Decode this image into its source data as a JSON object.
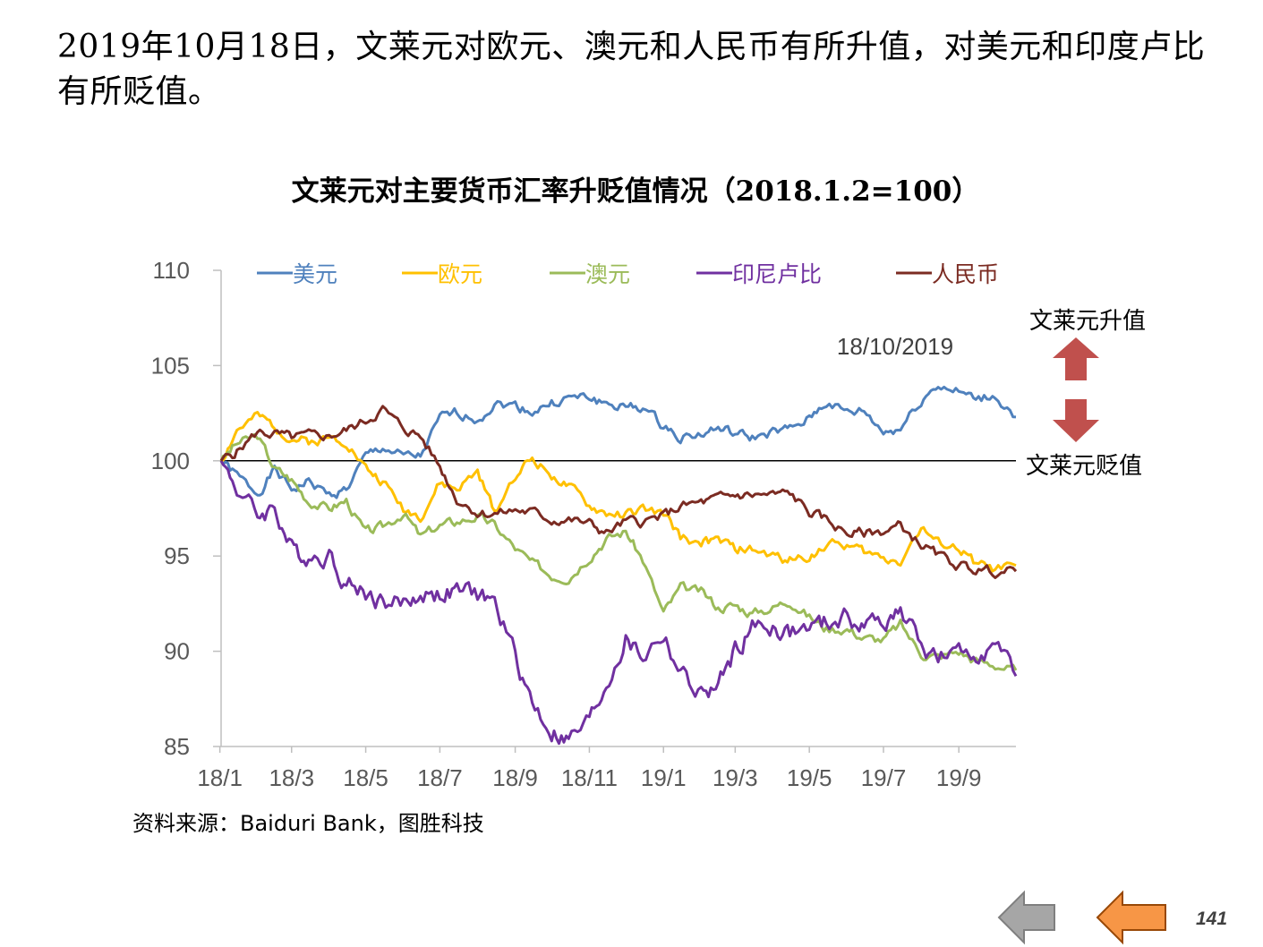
{
  "headline": "2019年10月18日，文莱元对欧元、澳元和人民币有所升值，对美元和印度卢比有所贬值。",
  "source": "资料来源：Baiduri Bank，图胜科技",
  "page_number": "141",
  "colors": {
    "usd": "#4F81BD",
    "eur": "#FFC000",
    "aud": "#9BBB59",
    "idr": "#7030A0",
    "cny": "#7B2B22",
    "arrow_red": "#C0504D",
    "nav_gray": "#A6A6A6",
    "nav_orange": "#F79646"
  },
  "icons": {
    "appreciation": "arrow-up-icon",
    "depreciation": "arrow-down-icon",
    "nav_back": "arrow-left-icon",
    "nav_prev": "arrow-left-icon"
  },
  "chart_data": {
    "type": "line",
    "title": "文莱元对主要货币汇率升贬值情况（2018.1.2=100）",
    "xlabel": "",
    "ylabel": "",
    "ylim": [
      85,
      110
    ],
    "yticks": [
      "85",
      "90",
      "95",
      "100",
      "105",
      "110"
    ],
    "xlim": [
      "2018-01-02",
      "2019-10-18"
    ],
    "xtick_labels": [
      "18/1",
      "18/3",
      "18/5",
      "18/7",
      "18/9",
      "18/11",
      "19/1",
      "19/3",
      "19/5",
      "19/7",
      "19/9"
    ],
    "xtick_dates": [
      "2018-01-01",
      "2018-03-01",
      "2018-05-01",
      "2018-07-01",
      "2018-09-01",
      "2018-11-01",
      "2019-01-01",
      "2019-03-01",
      "2019-05-01",
      "2019-07-01",
      "2019-09-01"
    ],
    "reference_line": 100,
    "legend_position": "top",
    "annotation": "18/10/2019",
    "labels": {
      "up": "文莱元升值",
      "down": "文莱元贬值"
    },
    "series": [
      {
        "name": "美元",
        "key": "usd",
        "points": [
          [
            "2018-01-02",
            100
          ],
          [
            "2018-01-15",
            99.2
          ],
          [
            "2018-02-01",
            98.3
          ],
          [
            "2018-02-15",
            99.5
          ],
          [
            "2018-03-01",
            98.5
          ],
          [
            "2018-03-15",
            98.9
          ],
          [
            "2018-04-01",
            98.2
          ],
          [
            "2018-04-15",
            98.5
          ],
          [
            "2018-05-01",
            100.2
          ],
          [
            "2018-05-15",
            100.7
          ],
          [
            "2018-06-01",
            100.2
          ],
          [
            "2018-06-15",
            100.2
          ],
          [
            "2018-07-01",
            102.2
          ],
          [
            "2018-07-15",
            102.5
          ],
          [
            "2018-08-01",
            102.2
          ],
          [
            "2018-08-15",
            103.0
          ],
          [
            "2018-09-01",
            102.9
          ],
          [
            "2018-09-15",
            102.6
          ],
          [
            "2018-10-01",
            103.0
          ],
          [
            "2018-10-15",
            103.3
          ],
          [
            "2018-11-01",
            103.3
          ],
          [
            "2018-11-15",
            103.0
          ],
          [
            "2018-12-01",
            102.8
          ],
          [
            "2018-12-15",
            102.8
          ],
          [
            "2019-01-01",
            101.8
          ],
          [
            "2019-01-15",
            101.3
          ],
          [
            "2019-02-01",
            101.4
          ],
          [
            "2019-02-15",
            101.7
          ],
          [
            "2019-03-01",
            101.4
          ],
          [
            "2019-03-15",
            101.2
          ],
          [
            "2019-04-01",
            101.5
          ],
          [
            "2019-04-15",
            101.6
          ],
          [
            "2019-05-01",
            102.2
          ],
          [
            "2019-05-15",
            103.1
          ],
          [
            "2019-06-01",
            102.5
          ],
          [
            "2019-06-15",
            102.6
          ],
          [
            "2019-07-01",
            101.5
          ],
          [
            "2019-07-15",
            101.7
          ],
          [
            "2019-08-01",
            103.2
          ],
          [
            "2019-08-15",
            104.0
          ],
          [
            "2019-09-01",
            103.6
          ],
          [
            "2019-09-15",
            103.2
          ],
          [
            "2019-10-01",
            103.4
          ],
          [
            "2019-10-18",
            102.3
          ]
        ]
      },
      {
        "name": "欧元",
        "key": "eur",
        "points": [
          [
            "2018-01-02",
            100
          ],
          [
            "2018-01-15",
            101.6
          ],
          [
            "2018-02-01",
            102.3
          ],
          [
            "2018-02-15",
            101.8
          ],
          [
            "2018-03-01",
            101.2
          ],
          [
            "2018-03-15",
            101.0
          ],
          [
            "2018-04-01",
            101.2
          ],
          [
            "2018-04-15",
            101.1
          ],
          [
            "2018-05-01",
            99.6
          ],
          [
            "2018-05-15",
            98.9
          ],
          [
            "2018-06-01",
            97.5
          ],
          [
            "2018-06-15",
            97.1
          ],
          [
            "2018-07-01",
            98.8
          ],
          [
            "2018-07-15",
            98.5
          ],
          [
            "2018-08-01",
            99.4
          ],
          [
            "2018-08-15",
            97.3
          ],
          [
            "2018-09-01",
            99.3
          ],
          [
            "2018-09-15",
            100.1
          ],
          [
            "2018-10-01",
            99.3
          ],
          [
            "2018-10-15",
            98.6
          ],
          [
            "2018-11-01",
            97.6
          ],
          [
            "2018-11-15",
            97.2
          ],
          [
            "2018-12-01",
            97.2
          ],
          [
            "2018-12-15",
            97.4
          ],
          [
            "2019-01-01",
            97.2
          ],
          [
            "2019-01-15",
            96.0
          ],
          [
            "2019-02-01",
            95.7
          ],
          [
            "2019-02-15",
            95.8
          ],
          [
            "2019-03-01",
            95.4
          ],
          [
            "2019-03-15",
            95.3
          ],
          [
            "2019-04-01",
            95.0
          ],
          [
            "2019-04-15",
            94.8
          ],
          [
            "2019-05-01",
            95.0
          ],
          [
            "2019-05-15",
            95.6
          ],
          [
            "2019-06-01",
            95.6
          ],
          [
            "2019-06-15",
            95.2
          ],
          [
            "2019-07-01",
            94.9
          ],
          [
            "2019-07-15",
            94.8
          ],
          [
            "2019-08-01",
            96.5
          ],
          [
            "2019-08-15",
            95.6
          ],
          [
            "2019-09-01",
            95.4
          ],
          [
            "2019-09-15",
            94.6
          ],
          [
            "2019-10-01",
            94.3
          ],
          [
            "2019-10-18",
            94.5
          ]
        ]
      },
      {
        "name": "澳元",
        "key": "aud",
        "points": [
          [
            "2018-01-02",
            100
          ],
          [
            "2018-01-15",
            100.9
          ],
          [
            "2018-02-01",
            101.3
          ],
          [
            "2018-02-15",
            99.6
          ],
          [
            "2018-03-01",
            99.0
          ],
          [
            "2018-03-15",
            97.9
          ],
          [
            "2018-04-01",
            97.5
          ],
          [
            "2018-04-15",
            97.9
          ],
          [
            "2018-05-01",
            96.2
          ],
          [
            "2018-05-15",
            96.5
          ],
          [
            "2018-06-01",
            97.3
          ],
          [
            "2018-06-15",
            96.0
          ],
          [
            "2018-07-01",
            96.6
          ],
          [
            "2018-07-15",
            96.8
          ],
          [
            "2018-08-01",
            97.1
          ],
          [
            "2018-08-15",
            96.6
          ],
          [
            "2018-09-01",
            95.4
          ],
          [
            "2018-09-15",
            94.6
          ],
          [
            "2018-10-01",
            94.0
          ],
          [
            "2018-10-15",
            93.9
          ],
          [
            "2018-11-01",
            95.0
          ],
          [
            "2018-11-15",
            95.9
          ],
          [
            "2018-12-01",
            96.3
          ],
          [
            "2018-12-15",
            94.8
          ],
          [
            "2019-01-01",
            92.0
          ],
          [
            "2019-01-15",
            93.3
          ],
          [
            "2019-02-01",
            93.1
          ],
          [
            "2019-02-15",
            92.3
          ],
          [
            "2019-03-01",
            92.4
          ],
          [
            "2019-03-15",
            92.0
          ],
          [
            "2019-04-01",
            92.3
          ],
          [
            "2019-04-15",
            92.7
          ],
          [
            "2019-05-01",
            91.8
          ],
          [
            "2019-05-15",
            91.2
          ],
          [
            "2019-06-01",
            91.2
          ],
          [
            "2019-06-15",
            90.7
          ],
          [
            "2019-07-01",
            90.6
          ],
          [
            "2019-07-15",
            91.4
          ],
          [
            "2019-08-01",
            89.9
          ],
          [
            "2019-08-15",
            89.7
          ],
          [
            "2019-09-01",
            90.0
          ],
          [
            "2019-09-15",
            89.5
          ],
          [
            "2019-10-01",
            89.3
          ],
          [
            "2019-10-18",
            89.0
          ]
        ]
      },
      {
        "name": "印尼卢比",
        "key": "idr",
        "points": [
          [
            "2018-01-02",
            100
          ],
          [
            "2018-01-15",
            98.6
          ],
          [
            "2018-02-01",
            97.1
          ],
          [
            "2018-02-15",
            97.6
          ],
          [
            "2018-03-01",
            95.3
          ],
          [
            "2018-03-15",
            95.0
          ],
          [
            "2018-04-01",
            95.1
          ],
          [
            "2018-04-15",
            93.6
          ],
          [
            "2018-05-01",
            93.1
          ],
          [
            "2018-05-15",
            92.6
          ],
          [
            "2018-06-01",
            92.5
          ],
          [
            "2018-06-15",
            93.0
          ],
          [
            "2018-07-01",
            93.0
          ],
          [
            "2018-07-15",
            93.1
          ],
          [
            "2018-08-01",
            93.0
          ],
          [
            "2018-08-15",
            92.5
          ],
          [
            "2018-09-01",
            89.8
          ],
          [
            "2018-09-15",
            87.3
          ],
          [
            "2018-10-01",
            85.8
          ],
          [
            "2018-10-15",
            85.3
          ],
          [
            "2018-11-01",
            86.3
          ],
          [
            "2018-11-15",
            88.3
          ],
          [
            "2018-12-01",
            90.6
          ],
          [
            "2018-12-15",
            89.7
          ],
          [
            "2019-01-01",
            90.9
          ],
          [
            "2019-01-15",
            88.8
          ],
          [
            "2019-02-01",
            87.7
          ],
          [
            "2019-02-15",
            88.1
          ],
          [
            "2019-03-01",
            90.0
          ],
          [
            "2019-03-15",
            91.2
          ],
          [
            "2019-04-01",
            91.3
          ],
          [
            "2019-04-15",
            90.9
          ],
          [
            "2019-05-01",
            91.2
          ],
          [
            "2019-05-15",
            91.4
          ],
          [
            "2019-06-01",
            91.8
          ],
          [
            "2019-06-15",
            91.3
          ],
          [
            "2019-07-01",
            91.7
          ],
          [
            "2019-07-15",
            92.1
          ],
          [
            "2019-08-01",
            90.3
          ],
          [
            "2019-08-15",
            89.6
          ],
          [
            "2019-09-01",
            89.7
          ],
          [
            "2019-09-15",
            90.0
          ],
          [
            "2019-10-01",
            90.2
          ],
          [
            "2019-10-18",
            88.7
          ]
        ]
      },
      {
        "name": "人民币",
        "key": "cny",
        "points": [
          [
            "2018-01-02",
            100
          ],
          [
            "2018-01-15",
            100.5
          ],
          [
            "2018-02-01",
            101.5
          ],
          [
            "2018-02-15",
            101.4
          ],
          [
            "2018-03-01",
            101.2
          ],
          [
            "2018-03-15",
            101.3
          ],
          [
            "2018-04-01",
            101.3
          ],
          [
            "2018-04-15",
            101.6
          ],
          [
            "2018-05-01",
            102.1
          ],
          [
            "2018-05-15",
            102.7
          ],
          [
            "2018-06-01",
            101.7
          ],
          [
            "2018-06-15",
            101.3
          ],
          [
            "2018-07-01",
            99.7
          ],
          [
            "2018-07-15",
            98.0
          ],
          [
            "2018-08-01",
            97.3
          ],
          [
            "2018-08-15",
            97.2
          ],
          [
            "2018-09-01",
            97.4
          ],
          [
            "2018-09-15",
            97.3
          ],
          [
            "2018-10-01",
            96.9
          ],
          [
            "2018-10-15",
            96.9
          ],
          [
            "2018-11-01",
            96.7
          ],
          [
            "2018-11-15",
            96.2
          ],
          [
            "2018-12-01",
            96.8
          ],
          [
            "2018-12-15",
            96.8
          ],
          [
            "2019-01-01",
            97.1
          ],
          [
            "2019-01-15",
            97.6
          ],
          [
            "2019-02-01",
            97.8
          ],
          [
            "2019-02-15",
            98.0
          ],
          [
            "2019-03-01",
            98.2
          ],
          [
            "2019-03-15",
            98.2
          ],
          [
            "2019-04-01",
            98.2
          ],
          [
            "2019-04-15",
            98.3
          ],
          [
            "2019-05-01",
            97.3
          ],
          [
            "2019-05-15",
            96.9
          ],
          [
            "2019-06-01",
            96.2
          ],
          [
            "2019-06-15",
            96.2
          ],
          [
            "2019-07-01",
            96.3
          ],
          [
            "2019-07-15",
            96.6
          ],
          [
            "2019-08-01",
            95.6
          ],
          [
            "2019-08-15",
            95.0
          ],
          [
            "2019-09-01",
            94.5
          ],
          [
            "2019-09-15",
            94.3
          ],
          [
            "2019-10-01",
            94.2
          ],
          [
            "2019-10-18",
            94.2
          ]
        ]
      }
    ]
  }
}
